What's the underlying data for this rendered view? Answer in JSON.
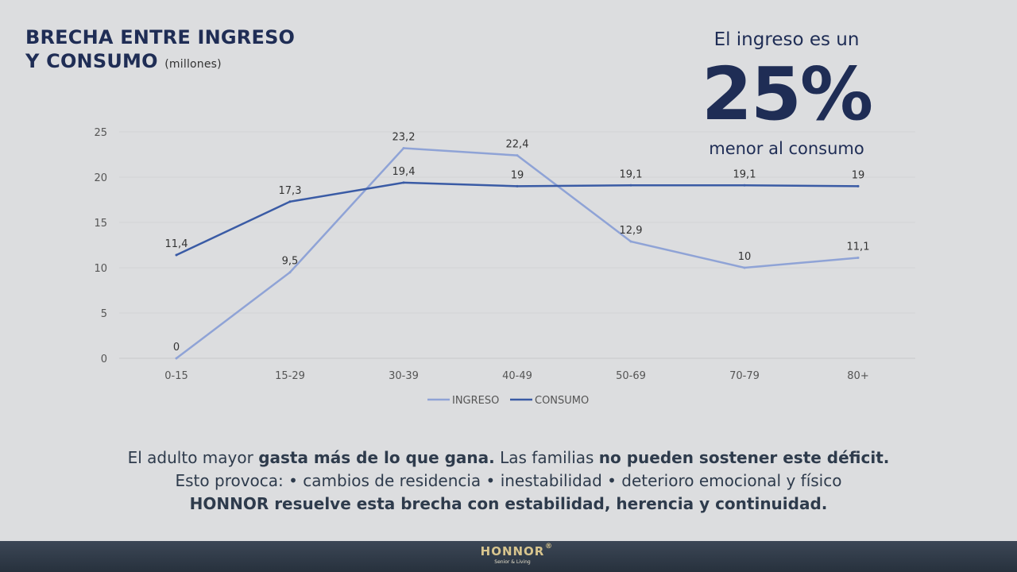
{
  "title": {
    "line1": "BRECHA ENTRE INGRESO",
    "line2": "Y CONSUMO",
    "unit": "(millones)"
  },
  "callout": {
    "line1": "El ingreso es un",
    "big": "25%",
    "line3": "menor al consumo"
  },
  "chart_data": {
    "type": "line",
    "title": "BRECHA ENTRE INGRESO Y CONSUMO (millones)",
    "categories": [
      "0-15",
      "15-29",
      "30-39",
      "40-49",
      "50-69",
      "70-79",
      "80+"
    ],
    "series": [
      {
        "name": "INGRESO",
        "color": "#8fa3d6",
        "values": [
          0,
          9.5,
          23.2,
          22.4,
          12.9,
          10,
          11.1
        ],
        "labels": [
          "0",
          "9,5",
          "23,2",
          "22,4",
          "12,9",
          "10",
          "11,1"
        ]
      },
      {
        "name": "CONSUMO",
        "color": "#3a5ba5",
        "values": [
          11.4,
          17.3,
          19.4,
          19,
          19.1,
          19.1,
          19
        ],
        "labels": [
          "11,4",
          "17,3",
          "19,4",
          "19",
          "19,1",
          "19,1",
          "19"
        ]
      }
    ],
    "yticks": [
      0,
      5,
      10,
      15,
      20,
      25
    ],
    "ylim": [
      0,
      25
    ],
    "grid": true,
    "legend": "bottom"
  },
  "bottom": {
    "l1a": "El adulto mayor ",
    "l1b": "gasta más de lo que gana.",
    "l1c": " Las familias ",
    "l1d": "no pueden sostener este déficit.",
    "l2": "Esto provoca: •  cambios de residencia • inestabilidad • deterioro emocional y físico",
    "l3": "HONNOR resuelve esta brecha con estabilidad, herencia y continuidad."
  },
  "footer": {
    "logo": "HONNOR",
    "tagline": "Senior & Living",
    "reg": "®"
  }
}
